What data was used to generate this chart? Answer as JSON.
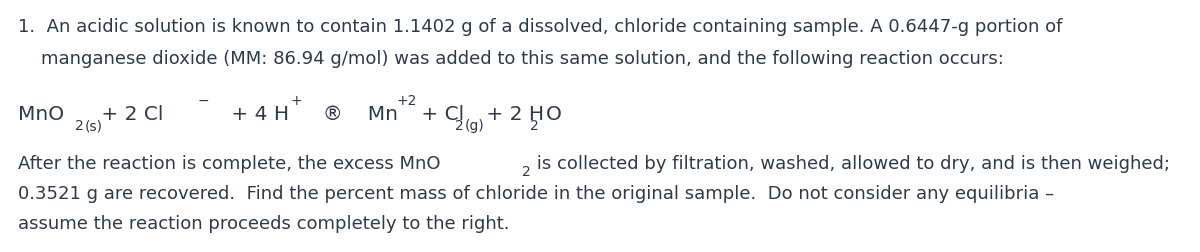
{
  "background_color": "#ffffff",
  "text_color": "#2d3a4a",
  "figsize": [
    12.0,
    2.53
  ],
  "dpi": 100,
  "line1": "1.  An acidic solution is known to contain 1.1402 g of a dissolved, chloride containing sample. A 0.6447-g portion of",
  "line2": "    manganese dioxide (MM: 86.94 g/mol) was added to this same solution, and the following reaction occurs:",
  "line4": "0.3521 g are recovered.  Find the percent mass of chloride in the original sample.  Do not consider any equilibria –",
  "line5": "assume the reaction proceeds completely to the right.",
  "font_size_main": 13.0,
  "font_size_equation": 14.5,
  "font_size_sub": 10.0,
  "font_family": "DejaVu Sans"
}
